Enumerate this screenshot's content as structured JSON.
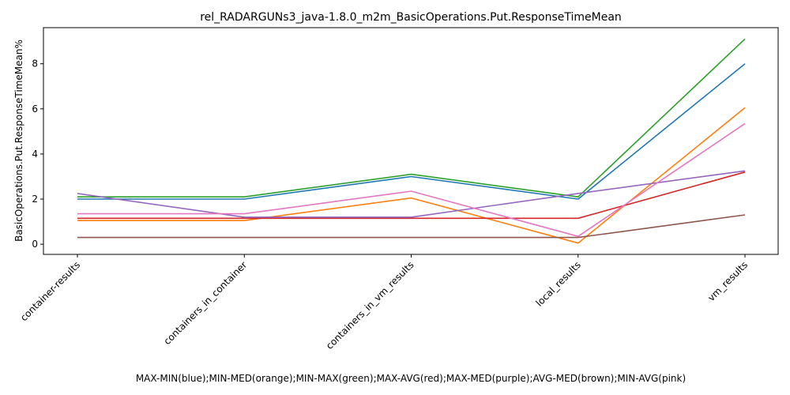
{
  "chart_data": {
    "type": "line",
    "title": "rel_RADARGUNs3_java-1.8.0_m2m_BasicOperations.Put.ResponseTimeMean",
    "xlabel": "MAX-MIN(blue);MIN-MED(orange);MIN-MAX(green);MAX-AVG(red);MAX-MED(purple);AVG-MED(brown);MIN-AVG(pink)",
    "ylabel": "BasicOperations.Put.ResponseTimeMean%",
    "categories": [
      "container-results",
      "containers_in_container",
      "containers_in_vm_results",
      "local_results",
      "vm_results"
    ],
    "y_ticks": [
      0,
      2,
      4,
      6,
      8
    ],
    "ylim": [
      -0.45,
      9.6
    ],
    "grid": false,
    "legend": "none",
    "series": [
      {
        "color": "#1f77b4",
        "values": [
          2.0,
          2.0,
          3.0,
          2.0,
          8.0
        ]
      },
      {
        "color": "#ff7f0e",
        "values": [
          1.05,
          1.05,
          2.05,
          0.05,
          6.05
        ]
      },
      {
        "color": "#2ca02c",
        "values": [
          2.1,
          2.1,
          3.1,
          2.1,
          9.1
        ]
      },
      {
        "color": "#d62728",
        "values": [
          1.15,
          1.15,
          1.15,
          1.15,
          3.2
        ]
      },
      {
        "color": "#9467bd",
        "values": [
          2.25,
          1.2,
          1.2,
          2.25,
          3.25
        ]
      },
      {
        "color": "#8c564b",
        "values": [
          0.3,
          0.3,
          0.3,
          0.3,
          1.3
        ]
      },
      {
        "color": "#e377c2",
        "values": [
          1.35,
          1.35,
          2.35,
          0.35,
          5.35
        ]
      }
    ]
  }
}
